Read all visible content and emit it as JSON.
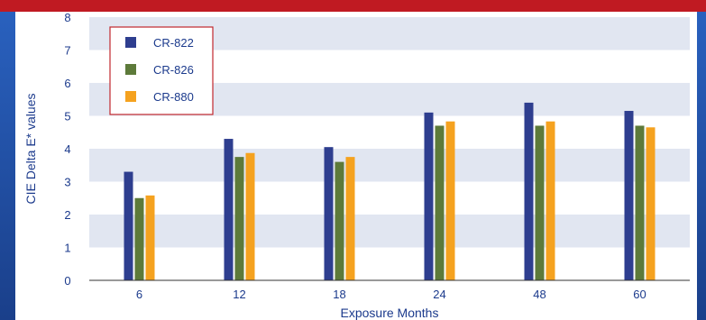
{
  "chart_data": {
    "type": "bar",
    "xlabel": "Exposure Months",
    "ylabel": "CIE Delta E* values",
    "ylim": [
      0,
      8
    ],
    "yticks": [
      0,
      1,
      2,
      3,
      4,
      5,
      6,
      7,
      8
    ],
    "categories": [
      "6",
      "12",
      "18",
      "24",
      "48",
      "60"
    ],
    "series": [
      {
        "name": "CR-822",
        "color": "#2e3e8f",
        "values": [
          3.3,
          4.3,
          4.05,
          5.1,
          5.4,
          5.15
        ]
      },
      {
        "name": "CR-826",
        "color": "#5d7a3a",
        "values": [
          2.5,
          3.75,
          3.6,
          4.7,
          4.7,
          4.7
        ]
      },
      {
        "name": "CR-880",
        "color": "#f5a21f",
        "values": [
          2.58,
          3.87,
          3.75,
          4.83,
          4.83,
          4.65
        ]
      }
    ],
    "grid": "alternating horizontal bands",
    "band_color": "#e1e6f1",
    "legend_position": "top-left"
  }
}
